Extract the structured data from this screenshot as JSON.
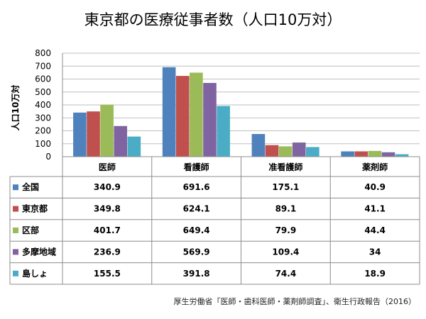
{
  "chart_data": {
    "type": "bar",
    "title": "東京都の医療従事者数（人口10万対）",
    "ylabel": "人口10万対",
    "xlabel": "",
    "ylim": [
      0,
      800
    ],
    "yticks": [
      0,
      100,
      200,
      300,
      400,
      500,
      600,
      700,
      800
    ],
    "categories": [
      "医師",
      "看護師",
      "准看護師",
      "薬剤師"
    ],
    "series": [
      {
        "name": "全国",
        "color": "#4f81bd",
        "values": [
          340.9,
          691.6,
          175.1,
          40.9
        ]
      },
      {
        "name": "東京都",
        "color": "#c0504d",
        "values": [
          349.8,
          624.1,
          89.1,
          41.1
        ]
      },
      {
        "name": "区部",
        "color": "#9bbb59",
        "values": [
          401.7,
          649.4,
          79.9,
          44.4
        ]
      },
      {
        "name": "多摩地域",
        "color": "#8064a2",
        "values": [
          236.9,
          569.9,
          109.4,
          34
        ]
      },
      {
        "name": "島しょ",
        "color": "#4bacc6",
        "values": [
          155.5,
          391.8,
          74.4,
          18.9
        ]
      }
    ],
    "grid": true,
    "legend": "data-table"
  },
  "source": "厚生労働省「医師・歯科医師・薬剤師調査」、衛生行政報告（2016）"
}
